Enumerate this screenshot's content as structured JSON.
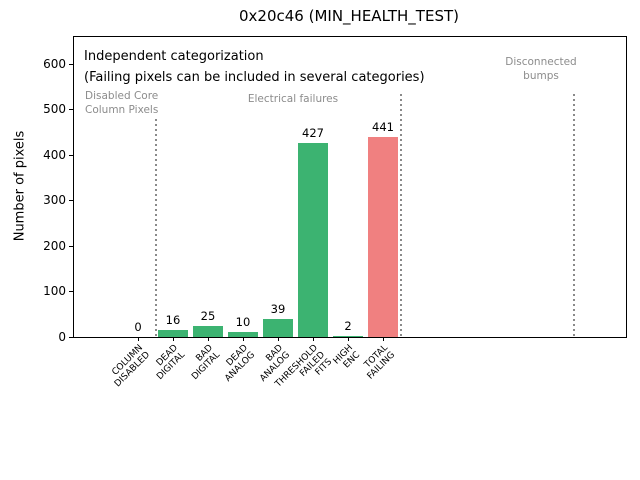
{
  "chart_data": {
    "type": "bar",
    "title": "0x20c46 (MIN_HEALTH_TEST)",
    "xlabel": "",
    "ylabel": "Number of pixels",
    "ylim": [
      0,
      660
    ],
    "yticks": [
      0,
      100,
      200,
      300,
      400,
      500,
      600
    ],
    "grid": false,
    "legend": null,
    "categories": [
      "COLUMN DISABLED",
      "DEAD DIGITAL",
      "BAD DIGITAL",
      "DEAD ANALOG",
      "BAD ANALOG",
      "THRESHOLD FAILED FITS",
      "HIGH ENC",
      "TOTAL FAILING"
    ],
    "category_lines": [
      [
        "COLUMN",
        "DISABLED"
      ],
      [
        "DEAD",
        "DIGITAL"
      ],
      [
        "BAD",
        "DIGITAL"
      ],
      [
        "DEAD",
        "ANALOG"
      ],
      [
        "BAD",
        "ANALOG"
      ],
      [
        "THRESHOLD",
        "FAILED",
        "FITS"
      ],
      [
        "HIGH",
        "ENC"
      ],
      [
        "TOTAL",
        "FAILING"
      ]
    ],
    "values": [
      0,
      16,
      25,
      10,
      39,
      427,
      2,
      441
    ],
    "bar_colors": [
      "#3cb371",
      "#3cb371",
      "#3cb371",
      "#3cb371",
      "#3cb371",
      "#3cb371",
      "#3cb371",
      "#f08080"
    ],
    "annotations": {
      "note_line1": "Independent categorization",
      "note_line2": "(Failing pixels can be included in several categories)",
      "sections": [
        {
          "lines": [
            "Disabled Core",
            "Column Pixels"
          ]
        },
        {
          "lines": [
            "Electrical failures"
          ]
        },
        {
          "lines": [
            "Disconnected",
            "bumps"
          ]
        }
      ]
    },
    "colors": {
      "bar_green": "#3cb371",
      "bar_red": "#f08080",
      "section_text": "#8c8c8c",
      "divider": "#8a8a8a",
      "title_text": "#000000"
    }
  }
}
